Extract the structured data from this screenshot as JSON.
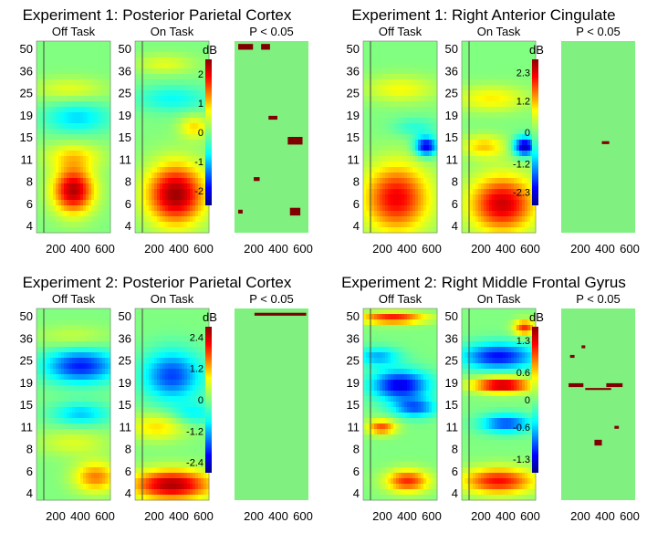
{
  "colors": {
    "nonsig": "#80f080",
    "sig": "#800000",
    "cold": "#00008c",
    "hot": "#8c0000"
  },
  "chart_data": [
    {
      "type": "heatmap",
      "title": "Experiment 1: Posterior Parietal Cortex",
      "ylabel": "",
      "xlabel": "",
      "y_ticks": [
        "50",
        "36",
        "25",
        "19",
        "15",
        "11",
        "8",
        "6",
        "4"
      ],
      "x_ticks": [
        "200",
        "400",
        "600"
      ],
      "panels": [
        "Off Task",
        "On Task",
        "P < 0.05"
      ],
      "colorbar": {
        "unit": "dB",
        "ticks": [
          "2",
          "1",
          "0",
          "-1",
          "-2"
        ],
        "range": [
          -2.5,
          2.5
        ]
      },
      "blobs": {
        "off": [
          [
            0.5,
            0.78,
            0.28,
            0.12,
            2.3
          ],
          [
            0.5,
            0.6,
            0.4,
            0.07,
            0.8
          ],
          [
            0.55,
            0.4,
            0.45,
            0.08,
            -0.9
          ],
          [
            0.45,
            0.25,
            0.5,
            0.06,
            0.6
          ]
        ],
        "on": [
          [
            0.55,
            0.8,
            0.4,
            0.16,
            2.4
          ],
          [
            0.8,
            0.45,
            0.2,
            0.06,
            0.9
          ],
          [
            0.5,
            0.3,
            0.5,
            0.07,
            -0.7
          ],
          [
            0.4,
            0.12,
            0.4,
            0.05,
            0.6
          ]
        ],
        "sig": [
          [
            0.15,
            0.03,
            0.2,
            0.03
          ],
          [
            0.42,
            0.03,
            0.12,
            0.03
          ],
          [
            0.52,
            0.4,
            0.12,
            0.02
          ],
          [
            0.82,
            0.52,
            0.2,
            0.04
          ],
          [
            0.3,
            0.72,
            0.08,
            0.02
          ],
          [
            0.08,
            0.89,
            0.06,
            0.02
          ],
          [
            0.82,
            0.89,
            0.14,
            0.04
          ]
        ]
      }
    },
    {
      "type": "heatmap",
      "title": "Experiment 1: Right Anterior Cingulate",
      "ylabel": "",
      "xlabel": "",
      "y_ticks": [
        "50",
        "36",
        "25",
        "19",
        "15",
        "11",
        "8",
        "6",
        "4"
      ],
      "x_ticks": [
        "200",
        "400",
        "600"
      ],
      "panels": [
        "Off Task",
        "On Task",
        "P < 0.05"
      ],
      "colorbar": {
        "unit": "dB",
        "ticks": [
          "2.3",
          "1.2",
          "0",
          "-1.2",
          "-2.3"
        ],
        "range": [
          -2.8,
          2.8
        ]
      },
      "blobs": {
        "off": [
          [
            0.45,
            0.82,
            0.45,
            0.18,
            2.2
          ],
          [
            0.85,
            0.55,
            0.15,
            0.05,
            -2.4
          ],
          [
            0.5,
            0.25,
            0.5,
            0.07,
            0.8
          ],
          [
            0.7,
            0.45,
            0.3,
            0.05,
            -0.6
          ]
        ],
        "on": [
          [
            0.55,
            0.85,
            0.45,
            0.15,
            2.4
          ],
          [
            0.85,
            0.55,
            0.15,
            0.05,
            -2.6
          ],
          [
            0.4,
            0.3,
            0.5,
            0.07,
            0.9
          ],
          [
            0.3,
            0.55,
            0.3,
            0.06,
            1.1
          ]
        ],
        "sig": [
          [
            0.6,
            0.53,
            0.1,
            0.015
          ]
        ]
      }
    },
    {
      "type": "heatmap",
      "title": "Experiment 2: Posterior Parietal Cortex",
      "ylabel": "",
      "xlabel": "",
      "y_ticks": [
        "50",
        "36",
        "25",
        "19",
        "15",
        "11",
        "8",
        "6",
        "4"
      ],
      "x_ticks": [
        "200",
        "400",
        "600"
      ],
      "panels": [
        "Off Task",
        "On Task",
        "P < 0.05"
      ],
      "colorbar": {
        "unit": "dB",
        "ticks": [
          "2.4",
          "1.2",
          "0",
          "-1.2",
          "-2.4"
        ],
        "range": [
          -2.8,
          2.8
        ]
      },
      "blobs": {
        "off": [
          [
            0.6,
            0.3,
            0.5,
            0.09,
            -2.0
          ],
          [
            0.6,
            0.55,
            0.4,
            0.06,
            -1.1
          ],
          [
            0.8,
            0.88,
            0.3,
            0.08,
            1.5
          ],
          [
            0.5,
            0.15,
            0.5,
            0.06,
            0.5
          ],
          [
            0.5,
            0.7,
            0.5,
            0.07,
            0.6
          ]
        ],
        "on": [
          [
            0.5,
            0.35,
            0.4,
            0.13,
            -1.8
          ],
          [
            0.5,
            0.92,
            0.55,
            0.08,
            2.6
          ],
          [
            0.3,
            0.62,
            0.4,
            0.07,
            1.0
          ],
          [
            0.8,
            0.55,
            0.3,
            0.06,
            -0.8
          ]
        ],
        "sig": [
          [
            0.62,
            0.03,
            0.7,
            0.015
          ]
        ]
      }
    },
    {
      "type": "heatmap",
      "title": "Experiment 2: Right Middle Frontal Gyrus",
      "ylabel": "",
      "xlabel": "",
      "y_ticks": [
        "50",
        "36",
        "25",
        "19",
        "15",
        "11",
        "8",
        "6",
        "4"
      ],
      "x_ticks": [
        "200",
        "400",
        "600"
      ],
      "panels": [
        "Off Task",
        "On Task",
        "P < 0.05"
      ],
      "colorbar": {
        "unit": "dB",
        "ticks": [
          "1.3",
          "0.6",
          "0",
          "-0.6",
          "-1.3"
        ],
        "range": [
          -1.6,
          1.6
        ]
      },
      "blobs": {
        "off": [
          [
            0.4,
            0.05,
            0.45,
            0.03,
            1.2
          ],
          [
            0.5,
            0.4,
            0.4,
            0.08,
            -1.3
          ],
          [
            0.25,
            0.62,
            0.2,
            0.04,
            1.0
          ],
          [
            0.7,
            0.52,
            0.3,
            0.05,
            -0.9
          ],
          [
            0.6,
            0.9,
            0.3,
            0.06,
            1.1
          ],
          [
            0.2,
            0.25,
            0.3,
            0.05,
            -0.7
          ]
        ],
        "on": [
          [
            0.55,
            0.4,
            0.4,
            0.04,
            1.5
          ],
          [
            0.5,
            0.25,
            0.5,
            0.07,
            -1.2
          ],
          [
            0.5,
            0.9,
            0.5,
            0.07,
            1.2
          ],
          [
            0.6,
            0.6,
            0.35,
            0.05,
            -1.0
          ],
          [
            0.85,
            0.1,
            0.15,
            0.04,
            1.1
          ]
        ],
        "sig": [
          [
            0.2,
            0.4,
            0.2,
            0.02
          ],
          [
            0.72,
            0.4,
            0.22,
            0.02
          ],
          [
            0.5,
            0.42,
            0.35,
            0.01
          ],
          [
            0.5,
            0.7,
            0.1,
            0.03
          ],
          [
            0.3,
            0.2,
            0.05,
            0.015
          ],
          [
            0.15,
            0.25,
            0.06,
            0.015
          ],
          [
            0.75,
            0.62,
            0.06,
            0.015
          ]
        ]
      }
    }
  ]
}
